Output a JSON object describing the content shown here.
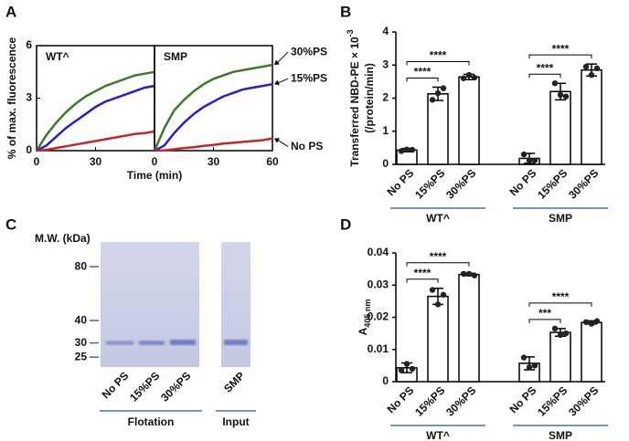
{
  "chart_data": [
    {
      "type": "line",
      "panel": "A",
      "title": "WT^",
      "xlabel": "Time (min)",
      "ylabel": "% of max. fluorescence",
      "x": [
        0,
        5,
        10,
        15,
        20,
        25,
        30,
        35,
        40,
        45,
        50,
        55,
        60
      ],
      "xlim": [
        0,
        60
      ],
      "xticks": [
        0,
        30
      ],
      "ylim": [
        0,
        6
      ],
      "yticks": [
        0,
        3,
        6
      ],
      "series": [
        {
          "color": "#3b7a26",
          "values": [
            0,
            0.9,
            1.6,
            2.2,
            2.7,
            3.1,
            3.4,
            3.7,
            3.9,
            4.1,
            4.3,
            4.4,
            4.5
          ]
        },
        {
          "color": "#2a1fc6",
          "values": [
            0,
            0.3,
            0.8,
            1.3,
            1.7,
            2.1,
            2.5,
            2.8,
            3.0,
            3.2,
            3.4,
            3.6,
            3.7
          ]
        },
        {
          "color": "#c1272d",
          "values": [
            0,
            0.05,
            0.15,
            0.25,
            0.35,
            0.45,
            0.55,
            0.65,
            0.75,
            0.85,
            0.95,
            1.0,
            1.1
          ]
        }
      ]
    },
    {
      "type": "line",
      "title": "SMP",
      "x": [
        0,
        5,
        10,
        15,
        20,
        25,
        30,
        35,
        40,
        45,
        50,
        55,
        60
      ],
      "xlim": [
        0,
        60
      ],
      "xticks": [
        0,
        30,
        60
      ],
      "ylim": [
        0,
        6
      ],
      "series": [
        {
          "name": "30%PS",
          "color": "#3b7a26",
          "values": [
            0,
            1.3,
            2.3,
            2.9,
            3.4,
            3.8,
            4.1,
            4.3,
            4.5,
            4.6,
            4.7,
            4.8,
            4.9
          ]
        },
        {
          "name": "15%PS",
          "color": "#2a1fc6",
          "values": [
            0,
            0.3,
            1.0,
            1.6,
            2.1,
            2.5,
            2.8,
            3.1,
            3.3,
            3.5,
            3.6,
            3.7,
            3.8
          ]
        },
        {
          "name": "No PS",
          "color": "#c1272d",
          "values": [
            0,
            0.02,
            0.08,
            0.15,
            0.2,
            0.27,
            0.33,
            0.4,
            0.45,
            0.5,
            0.55,
            0.6,
            0.7
          ]
        }
      ]
    },
    {
      "type": "bar",
      "panel": "B",
      "ylabel": "Transferred NBD-PE × 10",
      "ylabel_superscript": "-3",
      "ylabel_2": "(/protein/min)",
      "categories": [
        "No PS",
        "15%PS",
        "30%PS",
        "No PS",
        "15%PS",
        "30%PS"
      ],
      "values": [
        0.43,
        2.13,
        2.64,
        0.18,
        2.2,
        2.85
      ],
      "errors": [
        0.05,
        0.2,
        0.08,
        0.15,
        0.25,
        0.18
      ],
      "points": [
        [
          0.4,
          0.45,
          0.44
        ],
        [
          1.95,
          2.15,
          2.3
        ],
        [
          2.6,
          2.7,
          2.62
        ],
        [
          0.3,
          0.12,
          0.12
        ],
        [
          2.45,
          2.1,
          2.05
        ],
        [
          2.95,
          2.7,
          2.9
        ]
      ],
      "ylim": [
        0,
        4
      ],
      "yticks": [
        0,
        1,
        2,
        3,
        4
      ],
      "groups": [
        {
          "label": "WT^",
          "from": 0,
          "to": 2
        },
        {
          "label": "SMP",
          "from": 3,
          "to": 5
        }
      ],
      "significance": [
        {
          "label": "****",
          "from": 0,
          "to": 1
        },
        {
          "label": "****",
          "from": 0,
          "to": 2
        },
        {
          "label": "****",
          "from": 3,
          "to": 4
        },
        {
          "label": "****",
          "from": 3,
          "to": 5
        }
      ]
    },
    {
      "type": "bar",
      "panel": "D",
      "ylabel": "A",
      "ylabel_subscript": "405 nm",
      "categories": [
        "No PS",
        "15%PS",
        "30%PS",
        "No PS",
        "15%PS",
        "30%PS"
      ],
      "values": [
        0.0043,
        0.0265,
        0.0333,
        0.0057,
        0.0153,
        0.0184
      ],
      "errors": [
        0.0015,
        0.0025,
        0.0004,
        0.002,
        0.0012,
        0.0005
      ],
      "points": [
        [
          0.0035,
          0.0055,
          0.004
        ],
        [
          0.0285,
          0.024,
          0.027
        ],
        [
          0.0335,
          0.0335,
          0.033
        ],
        [
          0.0075,
          0.0045,
          0.005
        ],
        [
          0.0165,
          0.0145,
          0.015
        ],
        [
          0.0185,
          0.018,
          0.0188
        ]
      ],
      "ylim": [
        0,
        0.04
      ],
      "yticks": [
        0,
        0.01,
        0.02,
        0.03,
        0.04
      ],
      "groups": [
        {
          "label": "WT^",
          "from": 0,
          "to": 2
        },
        {
          "label": "SMP",
          "from": 3,
          "to": 5
        }
      ],
      "significance": [
        {
          "label": "****",
          "from": 0,
          "to": 1
        },
        {
          "label": "****",
          "from": 0,
          "to": 2
        },
        {
          "label": "***",
          "from": 3,
          "to": 4
        },
        {
          "label": "****",
          "from": 3,
          "to": 5
        }
      ]
    }
  ],
  "gel": {
    "panel": "C",
    "ylabel": "M.W. (kDa)",
    "markers": [
      80,
      40,
      30,
      25
    ],
    "ylim": [
      22,
      110
    ],
    "log": true,
    "lanes": [
      "No PS",
      "15%PS",
      "30%PS",
      "SMP"
    ],
    "groups": [
      {
        "label": "Flotation",
        "from": 0,
        "to": 2
      },
      {
        "label": "Input",
        "from": 3,
        "to": 3
      }
    ]
  }
}
